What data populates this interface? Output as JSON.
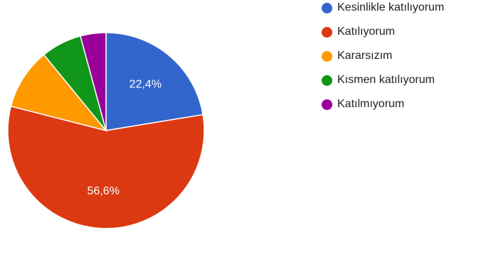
{
  "chart_data": {
    "type": "pie",
    "start_angle_deg": 90,
    "direction": "clockwise",
    "legend_position": "right",
    "slices": [
      {
        "label": "Kesinlikle katılıyorum",
        "value": 22.4,
        "display": "22,4%",
        "color": "#3366cc"
      },
      {
        "label": "Katılıyorum",
        "value": 56.6,
        "display": "56,6%",
        "color": "#dc3912"
      },
      {
        "label": "Kararsızım",
        "value": 10.1,
        "display": "",
        "color": "#ff9900"
      },
      {
        "label": "Kısmen katılıyorum",
        "value": 6.7,
        "display": "",
        "color": "#109618"
      },
      {
        "label": "Katılmıyorum",
        "value": 4.2,
        "display": "",
        "color": "#990099"
      }
    ]
  }
}
